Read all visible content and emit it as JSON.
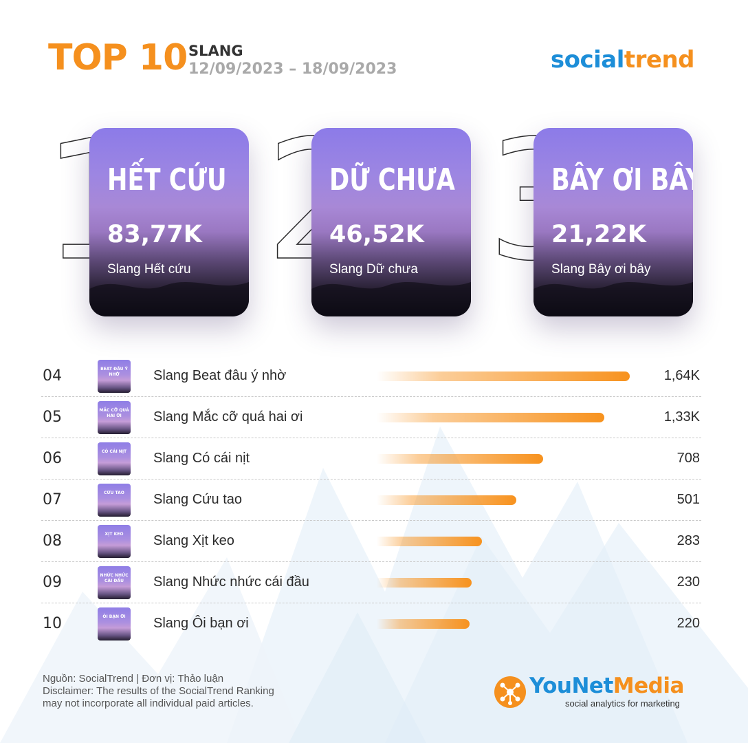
{
  "header": {
    "title": "TOP 10",
    "subtitle": "SLANG",
    "date_range": "12/09/2023 – 18/09/2023",
    "brand_part1": "social",
    "brand_part2": "trend"
  },
  "podium": [
    {
      "rank": "1",
      "slang": "HẾT CỨU",
      "value": "83,77K",
      "label": "Slang Hết cứu"
    },
    {
      "rank": "2",
      "slang": "DỮ CHƯA",
      "value": "46,52K",
      "label": "Slang Dữ chưa"
    },
    {
      "rank": "3",
      "slang": "BÂY ƠI BÂY",
      "value": "21,22K",
      "label": "Slang Bây ơi bây"
    }
  ],
  "chart_data": {
    "type": "bar",
    "orientation": "horizontal",
    "categories": [
      "Slang Beat đâu ý nhờ",
      "Slang Mắc cỡ quá hai ơi",
      "Slang Có cái nịt",
      "Slang Cứu tao",
      "Slang Xịt keo",
      "Slang Nhức nhức cái đầu",
      "Slang Ôi bạn ơi"
    ],
    "ranks": [
      "04",
      "05",
      "06",
      "07",
      "08",
      "09",
      "10"
    ],
    "thumb_texts": [
      "BEAT ĐÂU Ý NHỜ",
      "MẮC CỠ QUÁ HAI ƠI",
      "CÓ CÁI NỊT",
      "CỨU TAO",
      "XỊT KEO",
      "NHỨC NHỨC CÁI ĐẦU",
      "ÔI BẠN ƠI"
    ],
    "value_labels": [
      "1,64K",
      "1,33K",
      "708",
      "501",
      "283",
      "230",
      "220"
    ],
    "values": [
      1640,
      1330,
      708,
      501,
      283,
      230,
      220
    ],
    "bar_color": "#f7921e"
  },
  "footer": {
    "source": "Nguồn: SocialTrend | Đơn vị: Thảo luận",
    "disclaimer_1": "Disclaimer: The results of the SocialTrend Ranking",
    "disclaimer_2": "may not incorporate all individual paid articles."
  },
  "logo": {
    "part1": "YouNet",
    "part2": "Media",
    "tagline": "social analytics for marketing"
  }
}
